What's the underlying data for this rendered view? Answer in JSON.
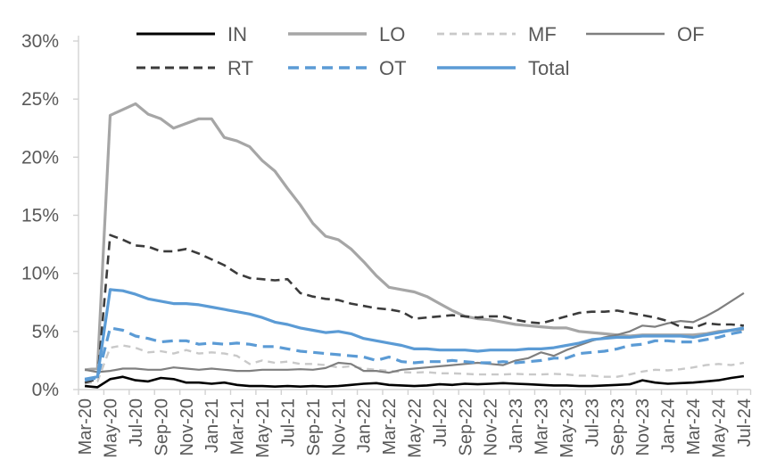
{
  "chart_data": {
    "type": "line",
    "title": "",
    "xlabel": "",
    "ylabel": "",
    "ylim": [
      0,
      30
    ],
    "ytick_step": 5,
    "yticks_labels": [
      "0%",
      "5%",
      "10%",
      "15%",
      "20%",
      "25%",
      "30%"
    ],
    "x_tick_every": 2,
    "grid": false,
    "legend_position": "top",
    "axis_color": "#d2d2d2",
    "label_color": "#595959",
    "x": [
      "Mar-20",
      "Apr-20",
      "May-20",
      "Jun-20",
      "Jul-20",
      "Aug-20",
      "Sep-20",
      "Oct-20",
      "Nov-20",
      "Dec-20",
      "Jan-21",
      "Feb-21",
      "Mar-21",
      "Apr-21",
      "May-21",
      "Jun-21",
      "Jul-21",
      "Aug-21",
      "Sep-21",
      "Oct-21",
      "Nov-21",
      "Dec-21",
      "Jan-22",
      "Feb-22",
      "Mar-22",
      "Apr-22",
      "May-22",
      "Jun-22",
      "Jul-22",
      "Aug-22",
      "Sep-22",
      "Oct-22",
      "Nov-22",
      "Dec-22",
      "Jan-23",
      "Feb-23",
      "Mar-23",
      "Apr-23",
      "May-23",
      "Jun-23",
      "Jul-23",
      "Aug-23",
      "Sep-23",
      "Oct-23",
      "Nov-23",
      "Dec-23",
      "Jan-24",
      "Feb-24",
      "Mar-24",
      "Apr-24",
      "May-24",
      "Jun-24",
      "Jul-24"
    ],
    "legend_rows": [
      [
        "IN",
        "LO",
        "MF",
        "OF"
      ],
      [
        "RT",
        "OT",
        "Total"
      ]
    ],
    "series": [
      {
        "name": "IN",
        "color": "#000000",
        "dasharray": "",
        "width": 2.6,
        "values": [
          0.3,
          0.2,
          0.9,
          1.1,
          0.8,
          0.7,
          1.0,
          0.9,
          0.6,
          0.6,
          0.5,
          0.6,
          0.4,
          0.3,
          0.3,
          0.25,
          0.3,
          0.25,
          0.3,
          0.25,
          0.3,
          0.4,
          0.5,
          0.55,
          0.4,
          0.35,
          0.3,
          0.35,
          0.45,
          0.4,
          0.5,
          0.45,
          0.5,
          0.55,
          0.5,
          0.45,
          0.4,
          0.35,
          0.35,
          0.3,
          0.3,
          0.35,
          0.4,
          0.45,
          0.8,
          0.6,
          0.5,
          0.55,
          0.6,
          0.7,
          0.8,
          1.0,
          1.15
        ]
      },
      {
        "name": "LO",
        "color": "#a6a6a6",
        "dasharray": "",
        "width": 3.2,
        "values": [
          1.7,
          1.8,
          23.6,
          24.1,
          24.6,
          23.7,
          23.3,
          22.5,
          22.9,
          23.3,
          23.3,
          21.7,
          21.4,
          20.9,
          19.7,
          18.8,
          17.3,
          15.9,
          14.3,
          13.2,
          12.9,
          12.1,
          11.0,
          9.8,
          8.8,
          8.6,
          8.4,
          8.0,
          7.4,
          6.8,
          6.3,
          6.1,
          6.0,
          5.8,
          5.6,
          5.5,
          5.4,
          5.3,
          5.3,
          5.0,
          4.9,
          4.8,
          4.7,
          4.6,
          4.7,
          4.7,
          4.7,
          4.7,
          4.7,
          4.8,
          5.0,
          5.1,
          5.2
        ]
      },
      {
        "name": "MF",
        "color": "#c9c9c9",
        "dasharray": "8 6",
        "width": 2.4,
        "values": [
          0.5,
          0.7,
          3.6,
          3.8,
          3.6,
          3.2,
          3.3,
          3.1,
          3.4,
          3.1,
          3.2,
          3.1,
          2.9,
          2.2,
          2.5,
          2.3,
          2.4,
          2.2,
          2.2,
          2.1,
          1.9,
          2.0,
          1.8,
          1.7,
          1.6,
          1.5,
          1.45,
          1.5,
          1.4,
          1.4,
          1.35,
          1.3,
          1.3,
          1.3,
          1.35,
          1.3,
          1.3,
          1.35,
          1.3,
          1.2,
          1.2,
          1.1,
          1.1,
          1.3,
          1.55,
          1.7,
          1.65,
          1.75,
          1.9,
          2.1,
          2.2,
          2.1,
          2.3
        ]
      },
      {
        "name": "OF",
        "color": "#7f7f7f",
        "dasharray": "",
        "width": 2.2,
        "values": [
          1.7,
          1.5,
          1.6,
          1.8,
          1.8,
          1.7,
          1.7,
          1.9,
          1.8,
          1.7,
          1.8,
          1.7,
          1.6,
          1.6,
          1.7,
          1.7,
          1.7,
          1.75,
          1.7,
          1.85,
          2.3,
          2.2,
          1.6,
          1.6,
          1.45,
          1.7,
          1.8,
          1.9,
          2.0,
          2.1,
          2.2,
          2.3,
          2.2,
          2.1,
          2.5,
          2.7,
          3.2,
          2.9,
          3.4,
          3.8,
          4.2,
          4.5,
          4.7,
          5.0,
          5.5,
          5.4,
          5.7,
          5.9,
          5.8,
          6.3,
          6.9,
          7.6,
          8.3
        ]
      },
      {
        "name": "RT",
        "color": "#3b3b3b",
        "dasharray": "10 6",
        "width": 2.6,
        "values": [
          0.6,
          0.9,
          13.3,
          12.9,
          12.4,
          12.3,
          11.9,
          11.9,
          12.1,
          11.7,
          11.2,
          10.7,
          10.0,
          9.6,
          9.5,
          9.4,
          9.5,
          8.3,
          8.0,
          7.8,
          7.7,
          7.4,
          7.2,
          7.0,
          6.9,
          6.7,
          6.1,
          6.2,
          6.3,
          6.4,
          6.3,
          6.2,
          6.3,
          6.3,
          6.0,
          5.8,
          5.7,
          6.0,
          6.3,
          6.6,
          6.7,
          6.7,
          6.8,
          6.6,
          6.4,
          6.2,
          5.9,
          5.4,
          5.3,
          5.7,
          5.6,
          5.6,
          5.5
        ]
      },
      {
        "name": "OT",
        "color": "#5b9bd5",
        "dasharray": "12 7",
        "width": 3.2,
        "values": [
          0.8,
          1.0,
          5.3,
          5.1,
          4.6,
          4.4,
          4.1,
          4.2,
          4.2,
          3.9,
          4.0,
          3.9,
          4.0,
          3.9,
          3.7,
          3.7,
          3.5,
          3.3,
          3.2,
          3.1,
          3.0,
          2.9,
          2.8,
          2.5,
          2.8,
          2.4,
          2.3,
          2.4,
          2.4,
          2.5,
          2.4,
          2.3,
          2.3,
          2.4,
          2.3,
          2.4,
          2.5,
          2.7,
          2.7,
          3.1,
          3.2,
          3.3,
          3.5,
          3.8,
          3.9,
          4.2,
          4.2,
          4.1,
          4.1,
          4.3,
          4.5,
          4.8,
          5.0
        ]
      },
      {
        "name": "Total",
        "color": "#5b9bd5",
        "dasharray": "",
        "width": 3.2,
        "values": [
          0.9,
          1.1,
          8.6,
          8.5,
          8.2,
          7.8,
          7.6,
          7.4,
          7.4,
          7.3,
          7.1,
          6.9,
          6.7,
          6.5,
          6.2,
          5.8,
          5.6,
          5.3,
          5.1,
          4.9,
          5.0,
          4.8,
          4.4,
          4.2,
          4.0,
          3.8,
          3.5,
          3.5,
          3.4,
          3.4,
          3.4,
          3.3,
          3.4,
          3.4,
          3.4,
          3.5,
          3.5,
          3.6,
          3.8,
          4.0,
          4.3,
          4.4,
          4.5,
          4.5,
          4.6,
          4.6,
          4.6,
          4.6,
          4.5,
          4.7,
          4.9,
          5.1,
          5.3
        ]
      }
    ]
  }
}
